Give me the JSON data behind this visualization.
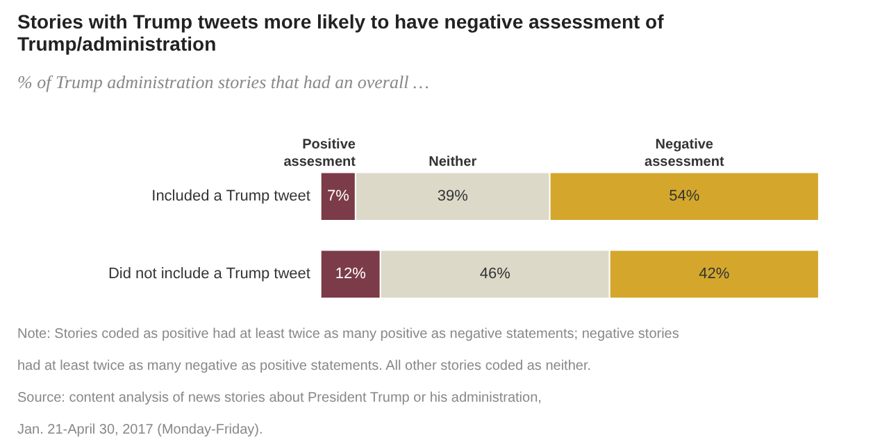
{
  "chart_data": {
    "type": "bar",
    "orientation": "horizontal",
    "stacked": true,
    "title": "Stories with Trump tweets more likely to have negative assessment of Trump/administration",
    "subtitle": "% of Trump administration stories that had an overall …",
    "categories": [
      "Included a Trump tweet",
      "Did not include a Trump tweet"
    ],
    "series": [
      {
        "name": "Positive assesment",
        "color": "#7b3b48",
        "values": [
          7,
          12
        ],
        "value_labels": [
          "7%",
          "12%"
        ]
      },
      {
        "name": "Neither",
        "color": "#dcd9c9",
        "values": [
          39,
          46
        ],
        "value_labels": [
          "39%",
          "46%"
        ]
      },
      {
        "name": "Negative assessment",
        "color": "#d4a72c",
        "values": [
          54,
          42
        ],
        "value_labels": [
          "54%",
          "42%"
        ]
      }
    ],
    "legend": false,
    "annotations": [
      "Note: Stories coded as positive had at least twice as many positive as negative statements; negative stories",
      "had at least twice as many negative as positive statements. All other stories coded as neither.",
      "Source: content analysis of news stories about President Trump or his administration,",
      "Jan. 21-April 30, 2017 (Monday-Friday)."
    ]
  }
}
